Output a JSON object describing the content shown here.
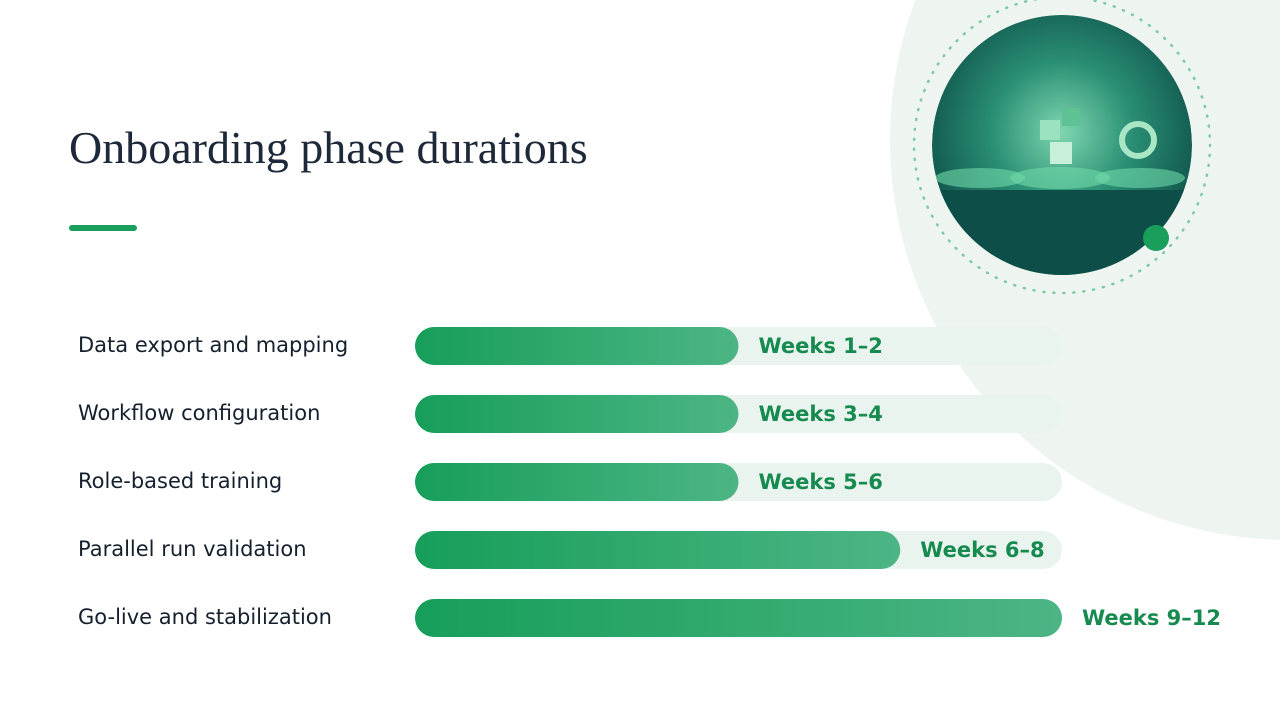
{
  "chart_data": {
    "type": "bar",
    "orientation": "horizontal",
    "title": "Onboarding phase durations",
    "categories": [
      "Data export and mapping",
      "Workflow configuration",
      "Role-based training",
      "Parallel run validation",
      "Go-live and stabilization"
    ],
    "values": [
      2,
      2,
      2,
      3,
      4
    ],
    "period_labels": [
      "Weeks 1–2",
      "Weeks 3–4",
      "Weeks 5–6",
      "Weeks 6–8",
      "Weeks 9–12"
    ],
    "xlim": [
      0,
      4
    ],
    "color": "#1a9e5c",
    "track_color": "#eaf4ef"
  }
}
